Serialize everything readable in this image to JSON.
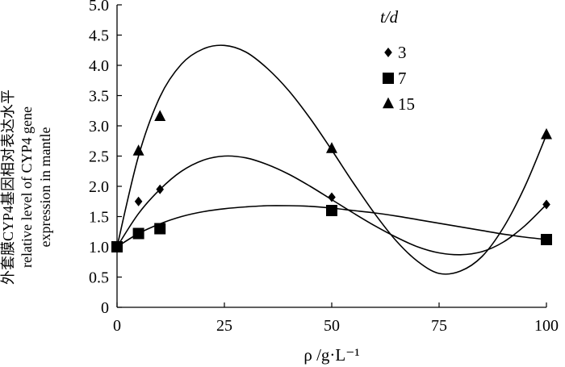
{
  "chart_data": {
    "type": "scatter",
    "x_label": "ρ /g·L⁻¹",
    "y_label_lines": [
      "外套膜CYP4基因相对表达水平",
      "relative level of CYP4 gene",
      "expression in mantle"
    ],
    "legend_title": "t/d",
    "xlim": [
      0,
      100
    ],
    "ylim": [
      0,
      5.0
    ],
    "x_ticks": [
      0,
      25,
      50,
      75,
      100
    ],
    "y_ticks": [
      0,
      0.5,
      1.0,
      1.5,
      2.0,
      2.5,
      3.0,
      3.5,
      4.0,
      4.5,
      5.0
    ],
    "x_tick_labels": [
      "0",
      "25",
      "50",
      "75",
      "100"
    ],
    "y_tick_labels": [
      "0",
      "0.5",
      "1.0",
      "1.5",
      "2.0",
      "2.5",
      "3.0",
      "3.5",
      "4.0",
      "4.5",
      "5.0"
    ],
    "grid": false,
    "legend_position": "top-right",
    "series": [
      {
        "name": "3",
        "marker": "diamond",
        "x": [
          0,
          5,
          10,
          50,
          100
        ],
        "y": [
          1.0,
          1.75,
          1.95,
          1.82,
          1.7
        ],
        "trend": [
          [
            0,
            1.0
          ],
          [
            5,
            1.55
          ],
          [
            10,
            1.95
          ],
          [
            15,
            2.25
          ],
          [
            20,
            2.43
          ],
          [
            25,
            2.5
          ],
          [
            30,
            2.47
          ],
          [
            35,
            2.36
          ],
          [
            40,
            2.2
          ],
          [
            45,
            2.0
          ],
          [
            50,
            1.78
          ],
          [
            55,
            1.56
          ],
          [
            60,
            1.35
          ],
          [
            65,
            1.16
          ],
          [
            70,
            1.0
          ],
          [
            75,
            0.9
          ],
          [
            80,
            0.87
          ],
          [
            85,
            0.92
          ],
          [
            90,
            1.08
          ],
          [
            95,
            1.35
          ],
          [
            100,
            1.7
          ]
        ]
      },
      {
        "name": "7",
        "marker": "square",
        "x": [
          0,
          5,
          10,
          50,
          100
        ],
        "y": [
          1.0,
          1.22,
          1.3,
          1.6,
          1.12
        ],
        "trend": [
          [
            0,
            1.0
          ],
          [
            5,
            1.22
          ],
          [
            10,
            1.38
          ],
          [
            15,
            1.5
          ],
          [
            20,
            1.58
          ],
          [
            25,
            1.63
          ],
          [
            30,
            1.66
          ],
          [
            35,
            1.68
          ],
          [
            40,
            1.68
          ],
          [
            45,
            1.67
          ],
          [
            50,
            1.64
          ],
          [
            55,
            1.6
          ],
          [
            60,
            1.56
          ],
          [
            65,
            1.51
          ],
          [
            70,
            1.45
          ],
          [
            75,
            1.39
          ],
          [
            80,
            1.33
          ],
          [
            85,
            1.27
          ],
          [
            90,
            1.21
          ],
          [
            95,
            1.16
          ],
          [
            100,
            1.12
          ]
        ]
      },
      {
        "name": "15",
        "marker": "triangle",
        "x": [
          0,
          5,
          10,
          50,
          100
        ],
        "y": [
          1.0,
          2.58,
          3.15,
          2.62,
          2.85
        ],
        "trend": [
          [
            0,
            1.0
          ],
          [
            5,
            2.5
          ],
          [
            10,
            3.48
          ],
          [
            15,
            4.02
          ],
          [
            20,
            4.27
          ],
          [
            25,
            4.33
          ],
          [
            30,
            4.22
          ],
          [
            35,
            3.95
          ],
          [
            40,
            3.58
          ],
          [
            45,
            3.12
          ],
          [
            50,
            2.6
          ],
          [
            55,
            2.06
          ],
          [
            60,
            1.55
          ],
          [
            65,
            1.1
          ],
          [
            70,
            0.76
          ],
          [
            75,
            0.56
          ],
          [
            80,
            0.6
          ],
          [
            85,
            0.84
          ],
          [
            90,
            1.32
          ],
          [
            95,
            2.0
          ],
          [
            100,
            2.85
          ]
        ]
      }
    ]
  }
}
